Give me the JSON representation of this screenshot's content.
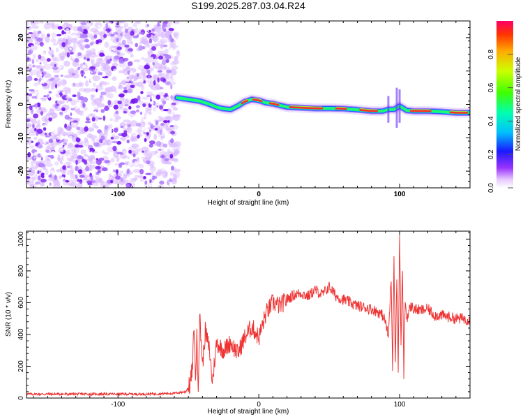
{
  "chart_data": [
    {
      "type": "heatmap",
      "title": "S199.2025.287.03.04.R24",
      "xlabel": "Height of straight line (km)",
      "ylabel": "Frequency (Hz)",
      "xlim": [
        -165,
        150
      ],
      "ylim": [
        -25,
        25
      ],
      "x_ticks": [
        -100,
        0,
        100
      ],
      "y_ticks": [
        -20,
        -10,
        0,
        10,
        20
      ],
      "colorbar": {
        "label": "Normalized spectral amplitude",
        "range": [
          0.0,
          1.0
        ],
        "ticks": [
          0.0,
          0.2,
          0.4,
          0.6,
          0.8
        ]
      },
      "noise_region_x": [
        -165,
        -60
      ],
      "signal_track": {
        "x": [
          -58,
          -50,
          -42,
          -36,
          -30,
          -25,
          -20,
          -15,
          -10,
          -5,
          0,
          5,
          10,
          20,
          30,
          40,
          50,
          60,
          70,
          80,
          88,
          92,
          96,
          100,
          105,
          110,
          120,
          130,
          140,
          150
        ],
        "freq": [
          2,
          1.5,
          1,
          0.2,
          -0.8,
          -1.3,
          -1.5,
          -0.5,
          0.8,
          1.5,
          1.2,
          0.5,
          0.2,
          -0.8,
          -1,
          -1.2,
          -1.2,
          -1.3,
          -1.6,
          -2,
          -2,
          -1.5,
          -1.5,
          -0.5,
          -1.8,
          -2,
          -2,
          -2.2,
          -2.5,
          -2.5
        ]
      }
    },
    {
      "type": "line",
      "xlabel": "Height of straight line (km)",
      "ylabel": "SNR (10 * v/v)",
      "xlim": [
        -165,
        150
      ],
      "ylim": [
        0,
        1050
      ],
      "x_ticks": [
        -100,
        0,
        100
      ],
      "y_ticks": [
        0,
        200,
        400,
        600,
        800,
        1000
      ],
      "color": "#ee3333",
      "series": [
        {
          "name": "SNR",
          "x": [
            -165,
            -140,
            -120,
            -100,
            -80,
            -60,
            -52,
            -49,
            -47,
            -46,
            -45,
            -44,
            -43,
            -42,
            -40,
            -38,
            -35,
            -33,
            -30,
            -25,
            -20,
            -15,
            -10,
            -5,
            0,
            5,
            10,
            15,
            20,
            25,
            30,
            35,
            40,
            45,
            50,
            55,
            60,
            65,
            70,
            75,
            80,
            85,
            88,
            90,
            92,
            94,
            95,
            96,
            97,
            98,
            99,
            100,
            101,
            102,
            103,
            104,
            105,
            108,
            110,
            115,
            120,
            125,
            130,
            135,
            140,
            145,
            150
          ],
          "y": [
            25,
            25,
            25,
            25,
            25,
            30,
            40,
            80,
            200,
            480,
            120,
            380,
            90,
            520,
            200,
            420,
            300,
            100,
            350,
            300,
            350,
            280,
            380,
            450,
            380,
            530,
            600,
            580,
            620,
            650,
            660,
            640,
            680,
            650,
            700,
            640,
            620,
            600,
            580,
            570,
            560,
            540,
            520,
            480,
            380,
            760,
            200,
            880,
            220,
            780,
            180,
            1040,
            320,
            820,
            150,
            620,
            500,
            580,
            560,
            550,
            560,
            520,
            520,
            510,
            500,
            500,
            490
          ]
        }
      ]
    }
  ]
}
